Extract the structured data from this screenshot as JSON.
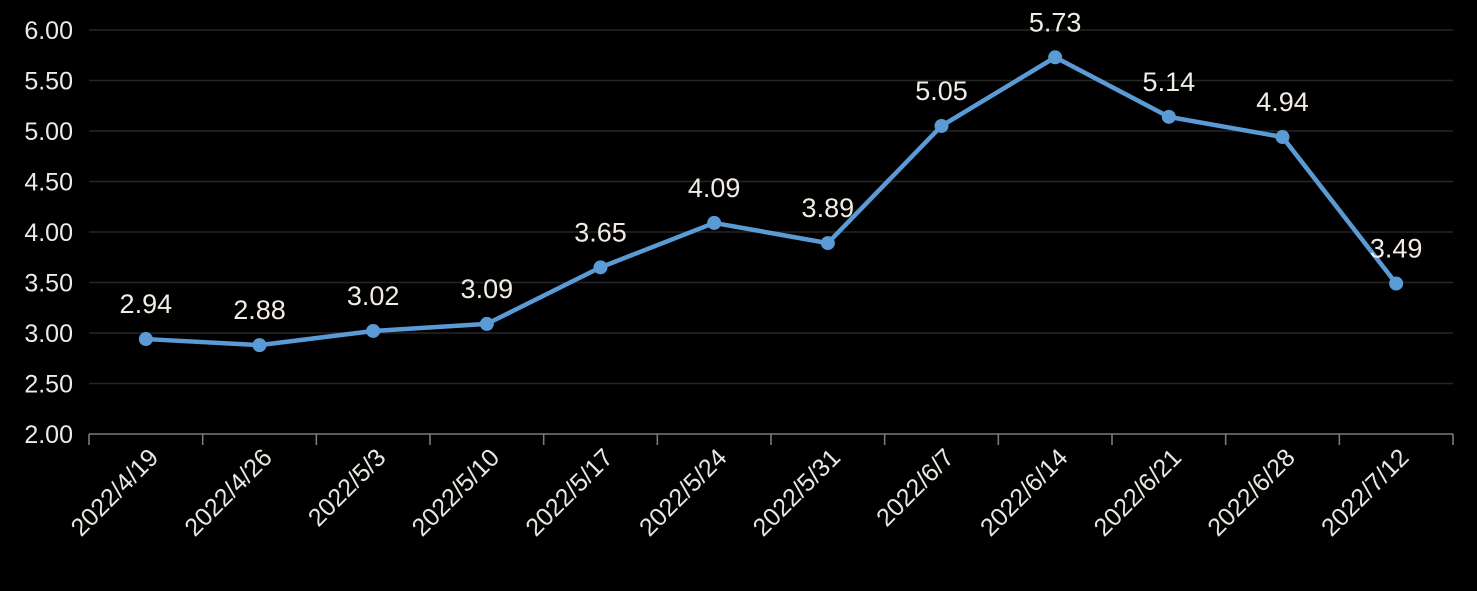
{
  "chart_data": {
    "type": "line",
    "title": "",
    "xlabel": "",
    "ylabel": "",
    "categories": [
      "2022/4/19",
      "2022/4/26",
      "2022/5/3",
      "2022/5/10",
      "2022/5/17",
      "2022/5/24",
      "2022/5/31",
      "2022/6/7",
      "2022/6/14",
      "2022/6/21",
      "2022/6/28",
      "2022/7/12"
    ],
    "values": [
      2.94,
      2.88,
      3.02,
      3.09,
      3.65,
      4.09,
      3.89,
      5.05,
      5.73,
      5.14,
      4.94,
      3.49
    ],
    "data_labels": [
      "2.94",
      "2.88",
      "3.02",
      "3.09",
      "3.65",
      "4.09",
      "3.89",
      "5.05",
      "5.73",
      "5.14",
      "4.94",
      "3.49"
    ],
    "ylim": [
      2.0,
      6.0
    ],
    "y_ticks": [
      2.0,
      2.5,
      3.0,
      3.5,
      4.0,
      4.5,
      5.0,
      5.5,
      6.0
    ],
    "y_tick_labels": [
      "2.00",
      "2.50",
      "3.00",
      "3.50",
      "4.00",
      "4.50",
      "5.00",
      "5.50",
      "6.00"
    ],
    "grid": "horizontal",
    "legend": "none",
    "marker": "circle"
  },
  "style": {
    "background_color": "#000000",
    "series_color": "#5b9bd5",
    "gridline_color": "#262626",
    "axis_color": "#7a7a7a",
    "y_tick_text_color": "#eceae6",
    "x_tick_text_color": "#e9e6e1",
    "data_label_color": "#f1ece4"
  }
}
